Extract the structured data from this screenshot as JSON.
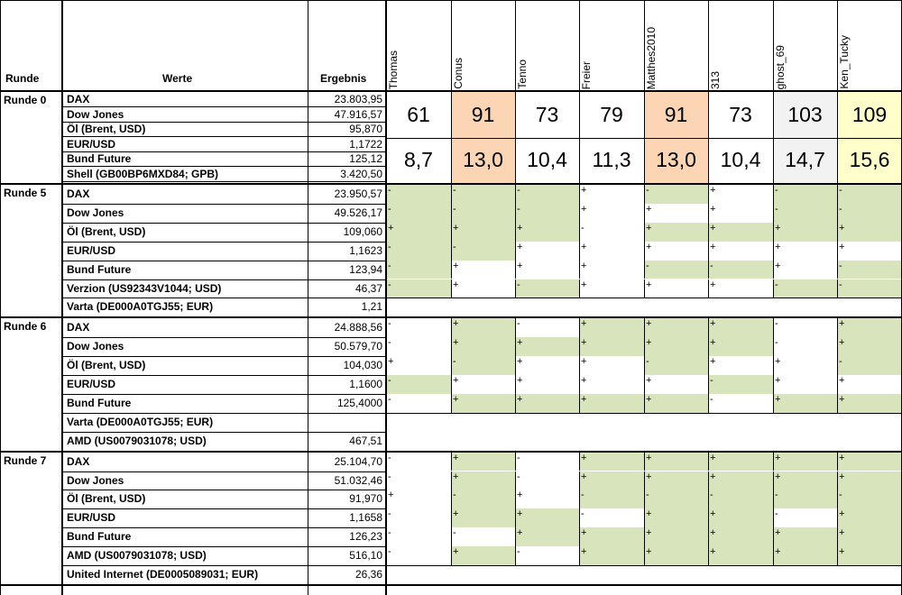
{
  "colors": {
    "green": "#d8e4bc",
    "orange": "#fcd5b5",
    "yellow": "#ffffcc",
    "gray": "#f2f2f2",
    "white": "#ffffff"
  },
  "header": {
    "runde": "Runde",
    "werte": "Werte",
    "ergebnis": "Ergebnis",
    "players": [
      "Thomas",
      "Conus",
      "Tenno",
      "Freier",
      "Matthes2010",
      "313",
      "ghost_69",
      "Ken_Tucky"
    ]
  },
  "round0": {
    "label": "Runde 0",
    "rows": [
      {
        "wert": "DAX",
        "ergebnis": "23.803,95"
      },
      {
        "wert": "Dow Jones",
        "ergebnis": "47.916,57"
      },
      {
        "wert": "Öl (Brent, USD)",
        "ergebnis": "95,870"
      },
      {
        "wert": "EUR/USD",
        "ergebnis": "1,1722"
      },
      {
        "wert": "Bund Future",
        "ergebnis": "125,12"
      },
      {
        "wert": "Shell (GB00BP6MXD84; GPB)",
        "ergebnis": "3.420,50"
      }
    ],
    "scores": [
      "61",
      "91",
      "73",
      "79",
      "91",
      "73",
      "103",
      "109"
    ],
    "averages": [
      "8,7",
      "13,0",
      "10,4",
      "11,3",
      "13,0",
      "10,4",
      "14,7",
      "15,6"
    ],
    "score_colors": [
      "white",
      "orange",
      "white",
      "white",
      "orange",
      "white",
      "gray",
      "yellow"
    ]
  },
  "rounds": [
    {
      "label": "Runde 5",
      "rows": [
        {
          "wert": "DAX",
          "ergebnis": "23.950,57",
          "tips": [
            "-",
            "-",
            "-",
            "+",
            "-",
            "+",
            "-",
            "-"
          ],
          "fill": [
            1,
            1,
            1,
            0,
            1,
            0,
            1,
            1
          ]
        },
        {
          "wert": "Dow Jones",
          "ergebnis": "49.526,17",
          "tips": [
            "-",
            "-",
            "-",
            "+",
            "+",
            "+",
            "-",
            "-"
          ],
          "fill": [
            1,
            1,
            1,
            0,
            0,
            0,
            1,
            1
          ]
        },
        {
          "wert": "Öl (Brent, USD)",
          "ergebnis": "109,060",
          "tips": [
            "+",
            "+",
            "+",
            "-",
            "+",
            "+",
            "+",
            "+"
          ],
          "fill": [
            1,
            1,
            1,
            0,
            1,
            1,
            1,
            1
          ]
        },
        {
          "wert": "EUR/USD",
          "ergebnis": "1,1623",
          "tips": [
            "-",
            "-",
            "+",
            "+",
            "+",
            "+",
            "+",
            "+"
          ],
          "fill": [
            1,
            1,
            0,
            0,
            0,
            0,
            0,
            0
          ]
        },
        {
          "wert": "Bund Future",
          "ergebnis": "123,94",
          "tips": [
            "-",
            "+",
            "+",
            "+",
            "-",
            "-",
            "+",
            "-"
          ],
          "fill": [
            1,
            0,
            0,
            0,
            1,
            1,
            0,
            1
          ]
        },
        {
          "wert": "Verzion (US92343V1044; USD)",
          "ergebnis": "46,37",
          "tips": [
            "-",
            "+",
            "-",
            "+",
            "+",
            "+",
            "-",
            "-"
          ],
          "fill": [
            1,
            0,
            1,
            0,
            0,
            0,
            1,
            1
          ]
        },
        {
          "wert": "Varta (DE000A0TGJ55; EUR)",
          "ergebnis": "1,21"
        }
      ]
    },
    {
      "label": "Runde 6",
      "rows": [
        {
          "wert": "DAX",
          "ergebnis": "24.888,56",
          "tips": [
            "-",
            "+",
            "-",
            "+",
            "+",
            "+",
            "-",
            "+"
          ],
          "fill": [
            0,
            1,
            0,
            1,
            1,
            1,
            0,
            1
          ]
        },
        {
          "wert": "Dow Jones",
          "ergebnis": "50.579,70",
          "tips": [
            "-",
            "+",
            "+",
            "+",
            "+",
            "+",
            "-",
            "+"
          ],
          "fill": [
            0,
            1,
            1,
            1,
            1,
            1,
            0,
            1
          ]
        },
        {
          "wert": "Öl (Brent, USD)",
          "ergebnis": "104,030",
          "tips": [
            "+",
            "-",
            "+",
            "+",
            "-",
            "+",
            "+",
            "-"
          ],
          "fill": [
            0,
            1,
            0,
            0,
            1,
            0,
            0,
            1
          ]
        },
        {
          "wert": "EUR/USD",
          "ergebnis": "1,1600",
          "tips": [
            "-",
            "+",
            "+",
            "+",
            "+",
            "-",
            "+",
            "+"
          ],
          "fill": [
            1,
            0,
            0,
            0,
            0,
            1,
            0,
            0
          ]
        },
        {
          "wert": "Bund Future",
          "ergebnis": "125,4000",
          "tips": [
            "-",
            "+",
            "+",
            "+",
            "+",
            "-",
            "+",
            "+"
          ],
          "fill": [
            0,
            1,
            1,
            1,
            1,
            0,
            1,
            1
          ]
        },
        {
          "wert": "Varta (DE000A0TGJ55; EUR)",
          "ergebnis": ""
        },
        {
          "wert": "AMD (US0079031078; USD)",
          "ergebnis": "467,51"
        }
      ]
    },
    {
      "label": "Runde 7",
      "rows": [
        {
          "wert": "DAX",
          "ergebnis": "25.104,70",
          "tips": [
            "-",
            "+",
            "-",
            "+",
            "+",
            "+",
            "+",
            "+"
          ],
          "fill": [
            0,
            1,
            0,
            1,
            1,
            1,
            1,
            1
          ]
        },
        {
          "wert": "Dow Jones",
          "ergebnis": "51.032,46",
          "tips": [
            "-",
            "+",
            "-",
            "+",
            "+",
            "+",
            "+",
            "+"
          ],
          "fill": [
            0,
            1,
            0,
            1,
            1,
            1,
            1,
            1
          ]
        },
        {
          "wert": "Öl (Brent, USD)",
          "ergebnis": "91,970",
          "tips": [
            "+",
            "-",
            "+",
            "-",
            "-",
            "-",
            "-",
            "-"
          ],
          "fill": [
            0,
            1,
            0,
            1,
            1,
            1,
            1,
            1
          ]
        },
        {
          "wert": "EUR/USD",
          "ergebnis": "1,1658",
          "tips": [
            "-",
            "+",
            "+",
            "-",
            "+",
            "+",
            "-",
            "+"
          ],
          "fill": [
            0,
            1,
            1,
            0,
            1,
            1,
            0,
            1
          ]
        },
        {
          "wert": "Bund Future",
          "ergebnis": "126,23",
          "tips": [
            "-",
            "-",
            "+",
            "+",
            "+",
            "+",
            "+",
            "+"
          ],
          "fill": [
            0,
            0,
            1,
            1,
            1,
            1,
            1,
            1
          ]
        },
        {
          "wert": "AMD (US0079031078; USD)",
          "ergebnis": "516,10",
          "tips": [
            "-",
            "+",
            "-",
            "+",
            "+",
            "+",
            "+",
            "+"
          ],
          "fill": [
            0,
            1,
            0,
            1,
            1,
            1,
            1,
            1
          ]
        },
        {
          "wert": "United Internet (DE0005089031; EUR)",
          "ergebnis": "26,36"
        }
      ]
    }
  ]
}
